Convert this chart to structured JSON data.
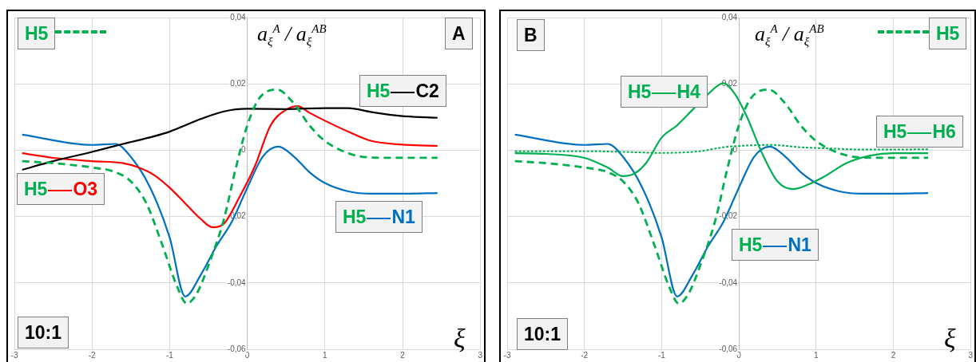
{
  "chart_data": [
    {
      "type": "line",
      "xlabel": "ξ",
      "ylabel": "a$_{ξ}$$^{A}$ / a$_{ξ}$$^{AB}$",
      "xlim": [
        -3,
        3
      ],
      "xticks": [
        -3,
        -2,
        -1,
        0,
        1,
        2,
        3
      ],
      "ylim": [
        -0.06,
        0.04
      ],
      "yticks": [
        {
          "value": -0.06,
          "label": "-0,06"
        },
        {
          "value": -0.04,
          "label": "-0,04"
        },
        {
          "value": -0.02,
          "label": "-0,02"
        },
        {
          "value": 0,
          "label": "0"
        },
        {
          "value": 0.02,
          "label": "0,02"
        },
        {
          "value": 0.04,
          "label": "0,04"
        }
      ],
      "grid": true,
      "annotations": [
        "A",
        "10:1"
      ],
      "series": [
        {
          "name": "H5",
          "color": "#00b050",
          "line_style": "dashed",
          "x": [
            -2.9,
            -2.5,
            -2,
            -1.7,
            -1.5,
            -1.3,
            -1.1,
            -0.9,
            -0.78,
            -0.65,
            -0.5,
            -0.3,
            -0.15,
            0,
            0.15,
            0.38,
            0.6,
            0.8,
            1,
            1.3,
            1.6,
            2,
            2.45
          ],
          "values": [
            -0.0033,
            -0.0039,
            -0.0052,
            -0.0066,
            -0.0094,
            -0.016,
            -0.0282,
            -0.0413,
            -0.0462,
            -0.0432,
            -0.0347,
            -0.0207,
            -0.0056,
            0.0075,
            0.0155,
            0.0183,
            0.0141,
            0.0075,
            0.0028,
            -0.0009,
            -0.0022,
            -0.0023,
            -0.0023
          ]
        },
        {
          "name": "H5 C2",
          "color": "#000000",
          "line_style": "solid",
          "x": [
            -2.9,
            -2.5,
            -2,
            -1.6,
            -1.2,
            -1,
            -0.6,
            -0.3,
            0,
            0.5,
            1,
            1.3,
            1.6,
            2,
            2.45
          ],
          "values": [
            -0.0059,
            -0.0033,
            -0.0005,
            0.0019,
            0.0042,
            0.0056,
            0.0094,
            0.0117,
            0.0125,
            0.0124,
            0.0127,
            0.0127,
            0.0115,
            0.0103,
            0.0098
          ]
        },
        {
          "name": "H5 O3",
          "color": "#ff0000",
          "line_style": "solid",
          "x": [
            -2.9,
            -2.5,
            -2,
            -1.6,
            -1.4,
            -1.2,
            -1,
            -0.8,
            -0.6,
            -0.45,
            -0.3,
            -0.1,
            0.1,
            0.3,
            0.5,
            0.65,
            0.8,
            1,
            1.3,
            1.6,
            2,
            2.45
          ],
          "values": [
            -0.0009,
            -0.0023,
            -0.0033,
            -0.0039,
            -0.0052,
            -0.0075,
            -0.0113,
            -0.016,
            -0.0207,
            -0.0232,
            -0.0221,
            -0.0141,
            -0.0047,
            0.0075,
            0.0122,
            0.0133,
            0.0113,
            0.0089,
            0.0056,
            0.0028,
            0.0017,
            0.0013
          ]
        },
        {
          "name": "H5 N1",
          "color": "#0070c0",
          "line_style": "solid",
          "x": [
            -2.9,
            -2,
            -1.7,
            -1.5,
            -1.25,
            -1,
            -0.8,
            -0.6,
            -0.4,
            -0.2,
            0,
            0.2,
            0.4,
            0.6,
            0.8,
            1,
            1.3,
            1.6,
            2,
            2.45
          ],
          "values": [
            0.0047,
            0.0016,
            0.0019,
            -0.002,
            -0.0113,
            -0.0263,
            -0.0441,
            -0.0376,
            -0.029,
            -0.0216,
            -0.0113,
            -0.0019,
            0.0011,
            -0.0019,
            -0.0066,
            -0.0099,
            -0.0124,
            -0.0131,
            -0.0131,
            -0.0129
          ]
        }
      ]
    },
    {
      "type": "line",
      "xlabel": "ξ",
      "ylabel": "a$_{ξ}$$^{A}$ / a$_{ξ}$$^{AB}$",
      "xlim": [
        -3,
        3
      ],
      "xticks": [
        -3,
        -2,
        -1,
        0,
        1,
        2,
        3
      ],
      "ylim": [
        -0.06,
        0.04
      ],
      "yticks": [
        {
          "value": -0.06,
          "label": "-0,06"
        },
        {
          "value": -0.04,
          "label": "-0,04"
        },
        {
          "value": -0.02,
          "label": "-0,02"
        },
        {
          "value": 0,
          "label": "0"
        },
        {
          "value": 0.02,
          "label": "0,02"
        },
        {
          "value": 0.04,
          "label": "0,04"
        }
      ],
      "grid": true,
      "annotations": [
        "B",
        "10:1"
      ],
      "series": [
        {
          "name": "H5",
          "color": "#00b050",
          "line_style": "dashed",
          "x": [
            -2.9,
            -2.5,
            -2,
            -1.7,
            -1.5,
            -1.3,
            -1.1,
            -0.9,
            -0.78,
            -0.65,
            -0.5,
            -0.3,
            -0.15,
            0,
            0.15,
            0.38,
            0.6,
            0.8,
            1,
            1.3,
            1.6,
            2,
            2.45
          ],
          "values": [
            -0.0033,
            -0.0039,
            -0.0052,
            -0.0066,
            -0.0094,
            -0.016,
            -0.0282,
            -0.0413,
            -0.0462,
            -0.0432,
            -0.0347,
            -0.0207,
            -0.0056,
            0.0075,
            0.0155,
            0.0183,
            0.0141,
            0.0075,
            0.0028,
            -0.0009,
            -0.0022,
            -0.0023,
            -0.0023
          ]
        },
        {
          "name": "H5 H4",
          "color": "#00b050",
          "line_style": "solid",
          "x": [
            -2.9,
            -2.5,
            -2,
            -1.7,
            -1.5,
            -1.35,
            -1.2,
            -1,
            -0.8,
            -0.6,
            -0.4,
            -0.2,
            -0.05,
            0.1,
            0.3,
            0.5,
            0.7,
            0.9,
            1.1,
            1.4,
            1.7,
            2,
            2.45
          ],
          "values": [
            -0.0009,
            -0.0011,
            -0.0023,
            -0.0052,
            -0.0078,
            -0.007,
            -0.0038,
            0.0038,
            0.0075,
            0.0122,
            0.0169,
            0.0202,
            0.0169,
            0.0103,
            -0.0009,
            -0.0094,
            -0.0117,
            -0.0103,
            -0.008,
            -0.0038,
            -0.0016,
            -0.0009,
            -0.0009
          ]
        },
        {
          "name": "H5 H6",
          "color": "#00b050",
          "line_style": "dotted",
          "x": [
            -2.9,
            -2,
            -1.5,
            -1,
            -0.5,
            -0.2,
            0.1,
            0.4,
            0.8,
            1.2,
            1.6,
            2,
            2.45
          ],
          "values": [
            -0.0003,
            -0.0003,
            -0.0005,
            -0.0008,
            -0.0003,
            0.0009,
            0.0014,
            0.0016,
            0.0009,
            0.0005,
            0.0002,
            0.0002,
            0.0003
          ]
        },
        {
          "name": "H5 N1",
          "color": "#0070c0",
          "line_style": "solid",
          "x": [
            -2.9,
            -2,
            -1.7,
            -1.5,
            -1.25,
            -1,
            -0.8,
            -0.6,
            -0.4,
            -0.2,
            0,
            0.2,
            0.4,
            0.6,
            0.8,
            1,
            1.3,
            1.6,
            2,
            2.45
          ],
          "values": [
            0.0047,
            0.0016,
            0.0019,
            -0.002,
            -0.0113,
            -0.0263,
            -0.0441,
            -0.0376,
            -0.029,
            -0.0216,
            -0.0113,
            -0.0019,
            0.0011,
            -0.0019,
            -0.0066,
            -0.0099,
            -0.0124,
            -0.0131,
            -0.0131,
            -0.0129
          ]
        }
      ]
    }
  ]
}
